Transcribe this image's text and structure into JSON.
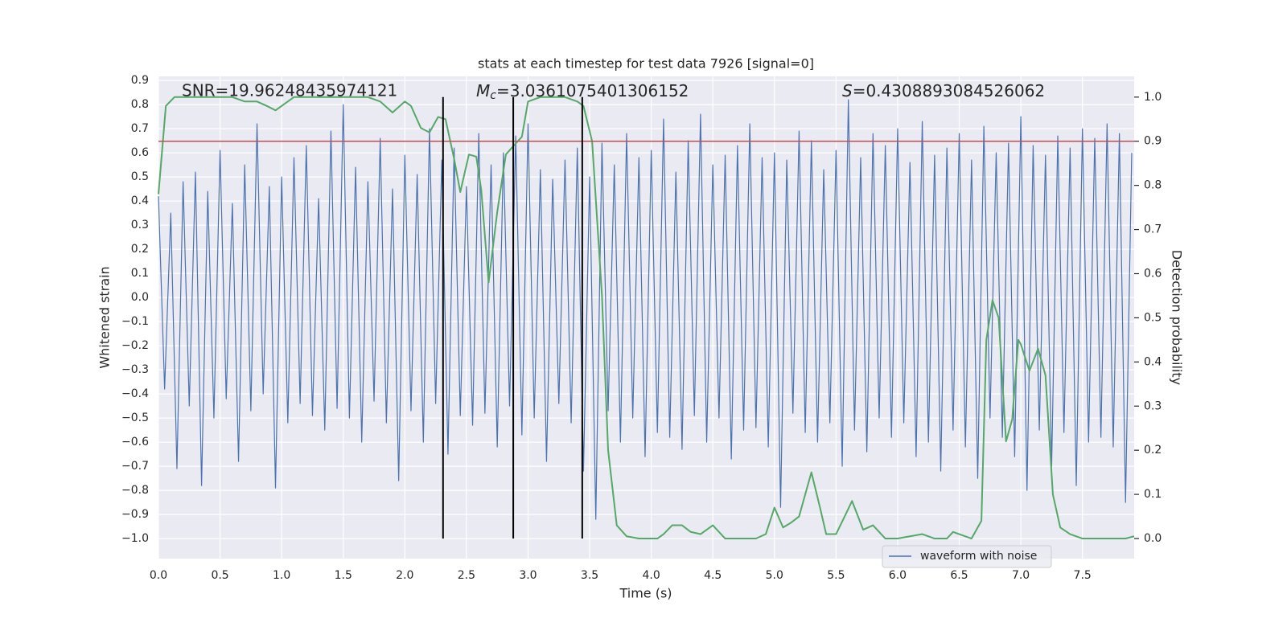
{
  "chart_data": {
    "type": "line",
    "title": "stats at each timestep for test data 7926 [signal=0]",
    "xlabel": "Time (s)",
    "ylabel": "Whitened strain",
    "y2label": "Detection probability",
    "annotations": {
      "snr": "SNR=19.96248435974121",
      "mc": {
        "symbol": "M",
        "subscript": "c",
        "text": "=3.0361075401306152"
      },
      "s": {
        "symbol": "S",
        "text": "=0.4308893084526062"
      }
    },
    "legend": "lower right",
    "grid": true,
    "xlim": [
      0,
      7.92
    ],
    "ylim": [
      -1.083,
      0.917
    ],
    "y2lim": [
      -0.0455,
      1.047
    ],
    "xticks": [
      {
        "value": 0,
        "label": "0.0"
      },
      0.5,
      {
        "value": 1,
        "label": "1.0"
      },
      1.5,
      {
        "value": 2,
        "label": "2.0"
      },
      2.5,
      {
        "value": 3,
        "label": "3.0"
      },
      3.5,
      {
        "value": 4,
        "label": "4.0"
      },
      4.5,
      {
        "value": 5,
        "label": "5.0"
      },
      5.5,
      {
        "value": 6,
        "label": "6.0"
      },
      6.5,
      {
        "value": 7,
        "label": "7.0"
      },
      7.5
    ],
    "yticks": [
      0.9,
      0.8,
      0.7,
      0.6,
      0.5,
      0.4,
      0.3,
      0.2,
      0.1,
      {
        "value": 0,
        "label": "0.0"
      },
      {
        "value": -0.1,
        "label": "−0.1"
      },
      {
        "value": -0.2,
        "label": "−0.2"
      },
      {
        "value": -0.3,
        "label": "−0.3"
      },
      {
        "value": -0.4,
        "label": "−0.4"
      },
      {
        "value": -0.5,
        "label": "−0.5"
      },
      {
        "value": -0.6,
        "label": "−0.6"
      },
      {
        "value": -0.7,
        "label": "−0.7"
      },
      {
        "value": -0.8,
        "label": "−0.8"
      },
      {
        "value": -0.9,
        "label": "−0.9"
      },
      {
        "value": -1,
        "label": "−1.0"
      }
    ],
    "y2ticks": [
      {
        "value": 0,
        "label": "0.0"
      },
      0.1,
      0.2,
      0.3,
      0.4,
      0.5,
      0.6,
      0.7,
      0.8,
      0.9,
      {
        "value": 1,
        "label": "1.0"
      }
    ],
    "threshold": {
      "value": 0.9,
      "color": "#c44e52",
      "axis": "y2"
    },
    "vlines": {
      "x": [
        2.31,
        2.88,
        3.44
      ],
      "span": [
        0,
        1
      ],
      "color": "#000000",
      "axis": "y2"
    },
    "series": [
      {
        "name": "waveform with noise",
        "color": "#4c72b0",
        "x": [
          0,
          0.05,
          0.1,
          0.15,
          0.2,
          0.25,
          0.3,
          0.35,
          0.4,
          0.45,
          0.5,
          0.55,
          0.6,
          0.65,
          0.7,
          0.75,
          0.8,
          0.85,
          0.9,
          0.95,
          1,
          1.05,
          1.1,
          1.15,
          1.2,
          1.25,
          1.3,
          1.35,
          1.4,
          1.45,
          1.5,
          1.55,
          1.6,
          1.65,
          1.7,
          1.75,
          1.8,
          1.85,
          1.9,
          1.95,
          2,
          2.05,
          2.1,
          2.15,
          2.2,
          2.25,
          2.3,
          2.35,
          2.4,
          2.45,
          2.5,
          2.55,
          2.6,
          2.65,
          2.7,
          2.75,
          2.8,
          2.85,
          2.9,
          2.95,
          3,
          3.05,
          3.1,
          3.15,
          3.2,
          3.25,
          3.3,
          3.35,
          3.4,
          3.45,
          3.5,
          3.55,
          3.6,
          3.65,
          3.7,
          3.75,
          3.8,
          3.85,
          3.9,
          3.95,
          4,
          4.05,
          4.1,
          4.15,
          4.2,
          4.25,
          4.3,
          4.35,
          4.4,
          4.45,
          4.5,
          4.55,
          4.6,
          4.65,
          4.7,
          4.75,
          4.8,
          4.85,
          4.9,
          4.95,
          5,
          5.05,
          5.1,
          5.15,
          5.2,
          5.25,
          5.3,
          5.35,
          5.4,
          5.45,
          5.5,
          5.55,
          5.6,
          5.65,
          5.7,
          5.75,
          5.8,
          5.85,
          5.9,
          5.95,
          6,
          6.05,
          6.1,
          6.15,
          6.2,
          6.25,
          6.3,
          6.35,
          6.4,
          6.45,
          6.5,
          6.55,
          6.6,
          6.65,
          6.7,
          6.75,
          6.8,
          6.85,
          6.9,
          6.95,
          7,
          7.05,
          7.1,
          7.15,
          7.2,
          7.25,
          7.3,
          7.35,
          7.4,
          7.45,
          7.5,
          7.55,
          7.6,
          7.65,
          7.7,
          7.75,
          7.8,
          7.85,
          7.9
        ],
        "values": [
          0.42,
          -0.38,
          0.35,
          -0.71,
          0.48,
          -0.45,
          0.52,
          -0.78,
          0.44,
          -0.5,
          0.61,
          -0.42,
          0.39,
          -0.68,
          0.55,
          -0.47,
          0.72,
          -0.4,
          0.46,
          -0.79,
          0.5,
          -0.52,
          0.58,
          -0.44,
          0.63,
          -0.49,
          0.41,
          -0.55,
          0.69,
          -0.46,
          0.8,
          -0.5,
          0.54,
          -0.6,
          0.48,
          -0.43,
          0.66,
          -0.52,
          0.45,
          -0.76,
          0.59,
          -0.47,
          0.51,
          -0.6,
          0.7,
          -0.44,
          0.57,
          -0.65,
          0.62,
          -0.49,
          0.46,
          -0.53,
          0.68,
          -0.48,
          0.55,
          -0.62,
          0.6,
          -0.45,
          0.67,
          -0.57,
          0.72,
          -0.5,
          0.53,
          -0.68,
          0.49,
          -0.44,
          0.57,
          -0.52,
          0.62,
          -0.72,
          0.5,
          -0.92,
          0.64,
          -0.47,
          0.55,
          -0.6,
          0.68,
          -0.5,
          0.58,
          -0.66,
          0.61,
          -0.56,
          0.74,
          -0.58,
          0.52,
          -0.63,
          0.65,
          -0.49,
          0.76,
          -0.6,
          0.55,
          -0.5,
          0.59,
          -0.67,
          0.63,
          -0.55,
          0.72,
          -0.54,
          0.58,
          -0.62,
          0.6,
          -0.87,
          0.57,
          -0.48,
          0.69,
          -0.56,
          0.65,
          -0.6,
          0.53,
          -0.52,
          0.61,
          -0.7,
          0.82,
          -0.55,
          0.58,
          -0.64,
          0.68,
          -0.5,
          0.63,
          -0.58,
          0.7,
          -0.52,
          0.56,
          -0.66,
          0.73,
          -0.6,
          0.59,
          -0.72,
          0.62,
          -0.55,
          0.68,
          -0.62,
          0.57,
          -0.75,
          0.71,
          -0.5,
          0.6,
          -0.58,
          0.64,
          -0.66,
          0.75,
          -0.8,
          0.63,
          -0.55,
          0.59,
          -0.7,
          0.67,
          -0.56,
          0.62,
          -0.78,
          0.7,
          -0.6,
          0.66,
          -0.58,
          0.72,
          -0.62,
          0.68,
          -0.85,
          0.6
        ]
      },
      {
        "color": "#55a868",
        "axis": "y2",
        "x": [
          0,
          0.06,
          0.13,
          0.2,
          0.6,
          0.7,
          0.8,
          0.88,
          0.95,
          1.05,
          1.1,
          1.5,
          1.7,
          1.8,
          1.9,
          2,
          2.05,
          2.13,
          2.2,
          2.27,
          2.33,
          2.4,
          2.45,
          2.52,
          2.58,
          2.62,
          2.68,
          2.75,
          2.82,
          2.9,
          2.95,
          3,
          3.1,
          3.3,
          3.4,
          3.45,
          3.52,
          3.6,
          3.65,
          3.72,
          3.8,
          3.9,
          4.05,
          4.1,
          4.17,
          4.25,
          4.32,
          4.4,
          4.5,
          4.6,
          4.75,
          4.85,
          4.93,
          5,
          5.07,
          5.13,
          5.2,
          5.3,
          5.37,
          5.42,
          5.5,
          5.57,
          5.63,
          5.72,
          5.8,
          5.9,
          6,
          6.1,
          6.2,
          6.3,
          6.4,
          6.45,
          6.6,
          6.68,
          6.72,
          6.77,
          6.82,
          6.88,
          6.93,
          6.98,
          7,
          7.07,
          7.14,
          7.2,
          7.26,
          7.32,
          7.4,
          7.5,
          7.6,
          7.85,
          7.92
        ],
        "values": [
          0.78,
          0.98,
          1,
          1,
          1,
          0.99,
          0.99,
          0.98,
          0.97,
          0.99,
          1,
          1,
          1,
          0.99,
          0.965,
          0.99,
          0.98,
          0.93,
          0.92,
          0.955,
          0.95,
          0.86,
          0.785,
          0.87,
          0.865,
          0.79,
          0.58,
          0.74,
          0.87,
          0.895,
          0.91,
          0.99,
          1,
          1,
          0.99,
          0.98,
          0.9,
          0.55,
          0.2,
          0.03,
          0.005,
          0,
          0,
          0.01,
          0.03,
          0.03,
          0.015,
          0.01,
          0.03,
          0,
          0,
          0,
          0.01,
          0.07,
          0.025,
          0.035,
          0.05,
          0.15,
          0.07,
          0.01,
          0.01,
          0.05,
          0.085,
          0.02,
          0.03,
          0,
          0,
          0.005,
          0.01,
          0,
          0,
          0.015,
          0,
          0.04,
          0.45,
          0.54,
          0.5,
          0.22,
          0.27,
          0.45,
          0.44,
          0.38,
          0.43,
          0.37,
          0.1,
          0.025,
          0.01,
          0,
          0,
          0,
          0.005
        ]
      }
    ]
  }
}
